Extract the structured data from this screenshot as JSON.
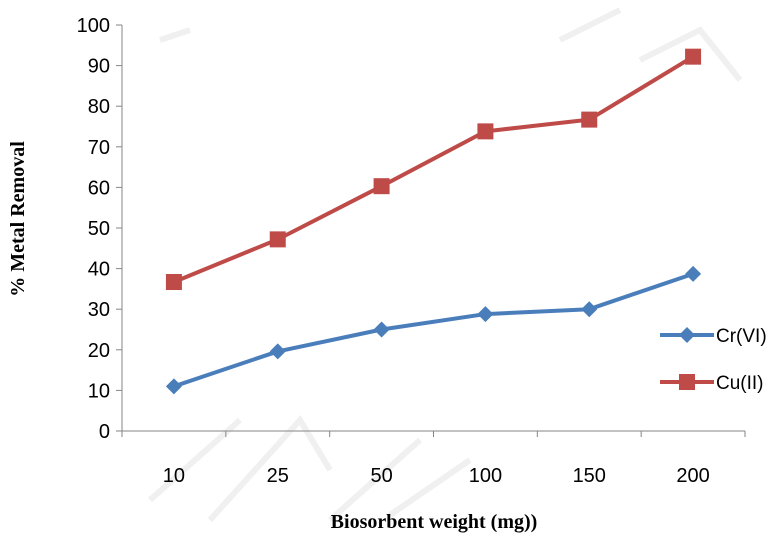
{
  "chart_data": {
    "type": "line",
    "categories": [
      "10",
      "25",
      "50",
      "100",
      "150",
      "200"
    ],
    "series": [
      {
        "name": "Cr(VI)",
        "values": [
          11,
          19.6,
          25,
          28.8,
          30,
          38.7
        ],
        "color": "#4a7ebb",
        "marker": "diamond"
      },
      {
        "name": "Cu(II)",
        "values": [
          36.7,
          47.2,
          60.3,
          73.8,
          76.7,
          92.2
        ],
        "color": "#be4b48",
        "marker": "square"
      }
    ],
    "xlabel": "Biosorbent weight (mg))",
    "ylabel": "% Metal Removal",
    "ylim": [
      0,
      100
    ],
    "yticks": [
      0,
      10,
      20,
      30,
      40,
      50,
      60,
      70,
      80,
      90,
      100
    ],
    "grid": false,
    "legend_position": "right"
  }
}
